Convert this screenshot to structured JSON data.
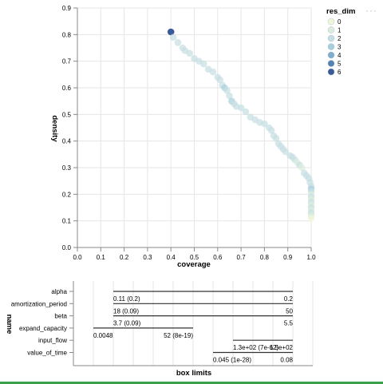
{
  "actions_label": "···",
  "colors": {
    "grid": "#e6e6e6",
    "axis": "#888888",
    "text": "#000000",
    "line": "#333333",
    "scale": [
      "#f0f6d8",
      "#dbeedd",
      "#c6dee3",
      "#a6cedb",
      "#7eaecb",
      "#5683b3",
      "#3a5a98"
    ],
    "frame_bottom": "#3aa04a"
  },
  "chart_data": [
    {
      "type": "scatter",
      "xlabel": "coverage",
      "ylabel": "density",
      "xlim": [
        0.0,
        1.0
      ],
      "ylim": [
        0.0,
        0.9
      ],
      "x_ticks": [
        "0.0",
        "0.1",
        "0.2",
        "0.3",
        "0.4",
        "0.5",
        "0.6",
        "0.7",
        "0.8",
        "0.9",
        "1.0"
      ],
      "y_ticks": [
        "0.0",
        "0.1",
        "0.2",
        "0.3",
        "0.4",
        "0.5",
        "0.6",
        "0.7",
        "0.8",
        "0.9"
      ],
      "legend": {
        "title": "res_dim",
        "position": "top-right",
        "entries": [
          "0",
          "1",
          "2",
          "3",
          "4",
          "5",
          "6"
        ]
      },
      "grid": true,
      "points": [
        {
          "x": 0.4,
          "y": 0.81,
          "res_dim": 6
        },
        {
          "x": 0.41,
          "y": 0.79,
          "res_dim": 2
        },
        {
          "x": 0.43,
          "y": 0.77,
          "res_dim": 2
        },
        {
          "x": 0.45,
          "y": 0.75,
          "res_dim": 2
        },
        {
          "x": 0.46,
          "y": 0.74,
          "res_dim": 2
        },
        {
          "x": 0.48,
          "y": 0.73,
          "res_dim": 2
        },
        {
          "x": 0.5,
          "y": 0.71,
          "res_dim": 2
        },
        {
          "x": 0.52,
          "y": 0.7,
          "res_dim": 2
        },
        {
          "x": 0.54,
          "y": 0.69,
          "res_dim": 2
        },
        {
          "x": 0.56,
          "y": 0.67,
          "res_dim": 2
        },
        {
          "x": 0.58,
          "y": 0.66,
          "res_dim": 2
        },
        {
          "x": 0.6,
          "y": 0.64,
          "res_dim": 2
        },
        {
          "x": 0.61,
          "y": 0.63,
          "res_dim": 2
        },
        {
          "x": 0.62,
          "y": 0.61,
          "res_dim": 2
        },
        {
          "x": 0.63,
          "y": 0.6,
          "res_dim": 3
        },
        {
          "x": 0.64,
          "y": 0.59,
          "res_dim": 2
        },
        {
          "x": 0.65,
          "y": 0.57,
          "res_dim": 2
        },
        {
          "x": 0.66,
          "y": 0.55,
          "res_dim": 3
        },
        {
          "x": 0.67,
          "y": 0.54,
          "res_dim": 2
        },
        {
          "x": 0.68,
          "y": 0.53,
          "res_dim": 2
        },
        {
          "x": 0.7,
          "y": 0.525,
          "res_dim": 2
        },
        {
          "x": 0.72,
          "y": 0.51,
          "res_dim": 2
        },
        {
          "x": 0.74,
          "y": 0.49,
          "res_dim": 2
        },
        {
          "x": 0.76,
          "y": 0.48,
          "res_dim": 2
        },
        {
          "x": 0.78,
          "y": 0.47,
          "res_dim": 2
        },
        {
          "x": 0.8,
          "y": 0.465,
          "res_dim": 2
        },
        {
          "x": 0.82,
          "y": 0.45,
          "res_dim": 2
        },
        {
          "x": 0.83,
          "y": 0.44,
          "res_dim": 2
        },
        {
          "x": 0.84,
          "y": 0.42,
          "res_dim": 2
        },
        {
          "x": 0.85,
          "y": 0.41,
          "res_dim": 2
        },
        {
          "x": 0.86,
          "y": 0.39,
          "res_dim": 2
        },
        {
          "x": 0.87,
          "y": 0.38,
          "res_dim": 2
        },
        {
          "x": 0.88,
          "y": 0.37,
          "res_dim": 2
        },
        {
          "x": 0.89,
          "y": 0.36,
          "res_dim": 2
        },
        {
          "x": 0.91,
          "y": 0.345,
          "res_dim": 2
        },
        {
          "x": 0.92,
          "y": 0.34,
          "res_dim": 2
        },
        {
          "x": 0.93,
          "y": 0.33,
          "res_dim": 2
        },
        {
          "x": 0.94,
          "y": 0.32,
          "res_dim": 1
        },
        {
          "x": 0.95,
          "y": 0.31,
          "res_dim": 2
        },
        {
          "x": 0.96,
          "y": 0.3,
          "res_dim": 1
        },
        {
          "x": 0.97,
          "y": 0.28,
          "res_dim": 2
        },
        {
          "x": 0.98,
          "y": 0.27,
          "res_dim": 2
        },
        {
          "x": 0.99,
          "y": 0.26,
          "res_dim": 2
        },
        {
          "x": 0.995,
          "y": 0.245,
          "res_dim": 2
        },
        {
          "x": 1.0,
          "y": 0.23,
          "res_dim": 2
        },
        {
          "x": 1.0,
          "y": 0.22,
          "res_dim": 3
        },
        {
          "x": 1.0,
          "y": 0.21,
          "res_dim": 2
        },
        {
          "x": 1.0,
          "y": 0.2,
          "res_dim": 1
        },
        {
          "x": 1.0,
          "y": 0.19,
          "res_dim": 2
        },
        {
          "x": 1.0,
          "y": 0.18,
          "res_dim": 1
        },
        {
          "x": 1.0,
          "y": 0.17,
          "res_dim": 2
        },
        {
          "x": 1.0,
          "y": 0.16,
          "res_dim": 1
        },
        {
          "x": 1.0,
          "y": 0.15,
          "res_dim": 2
        },
        {
          "x": 1.0,
          "y": 0.14,
          "res_dim": 1
        },
        {
          "x": 1.0,
          "y": 0.13,
          "res_dim": 2
        },
        {
          "x": 1.0,
          "y": 0.12,
          "res_dim": 1
        },
        {
          "x": 1.0,
          "y": 0.11,
          "res_dim": 0
        }
      ]
    },
    {
      "type": "box_limits",
      "xlabel": "box limits",
      "ylabel": "name",
      "grid": true,
      "rows": [
        {
          "name": "alpha",
          "start": 0.1,
          "end": 1.0,
          "labels": [
            {
              "text": "0.11 (0.2)",
              "at": 0.1,
              "anchor": "start"
            },
            {
              "text": "0.2",
              "at": 1.0,
              "anchor": "end"
            }
          ]
        },
        {
          "name": "amortization_period",
          "start": 0.1,
          "end": 1.0,
          "labels": [
            {
              "text": "18 (0.09)",
              "at": 0.1,
              "anchor": "start"
            },
            {
              "text": "50",
              "at": 1.0,
              "anchor": "end"
            }
          ]
        },
        {
          "name": "beta",
          "start": 0.1,
          "end": 1.0,
          "labels": [
            {
              "text": "3.7 (0.09)",
              "at": 0.1,
              "anchor": "start"
            },
            {
              "text": "5.5",
              "at": 1.0,
              "anchor": "end"
            }
          ]
        },
        {
          "name": "expand_capacity",
          "start": 0.0,
          "end": 0.5,
          "labels": [
            {
              "text": "0.0048",
              "at": 0.0,
              "anchor": "start"
            },
            {
              "text": "52 (8e-19)",
              "at": 0.5,
              "anchor": "end"
            }
          ]
        },
        {
          "name": "input_flow",
          "start": 0.7,
          "end": 1.0,
          "labels": [
            {
              "text": "1.3e+02 (7e-62)",
              "at": 0.7,
              "anchor": "start"
            },
            {
              "text": "1.5e+02",
              "at": 1.0,
              "anchor": "end"
            }
          ]
        },
        {
          "name": "value_of_time",
          "start": 0.6,
          "end": 1.0,
          "labels": [
            {
              "text": "0.045 (1e-28)",
              "at": 0.6,
              "anchor": "start"
            },
            {
              "text": "0.08",
              "at": 1.0,
              "anchor": "end"
            }
          ]
        }
      ]
    }
  ]
}
